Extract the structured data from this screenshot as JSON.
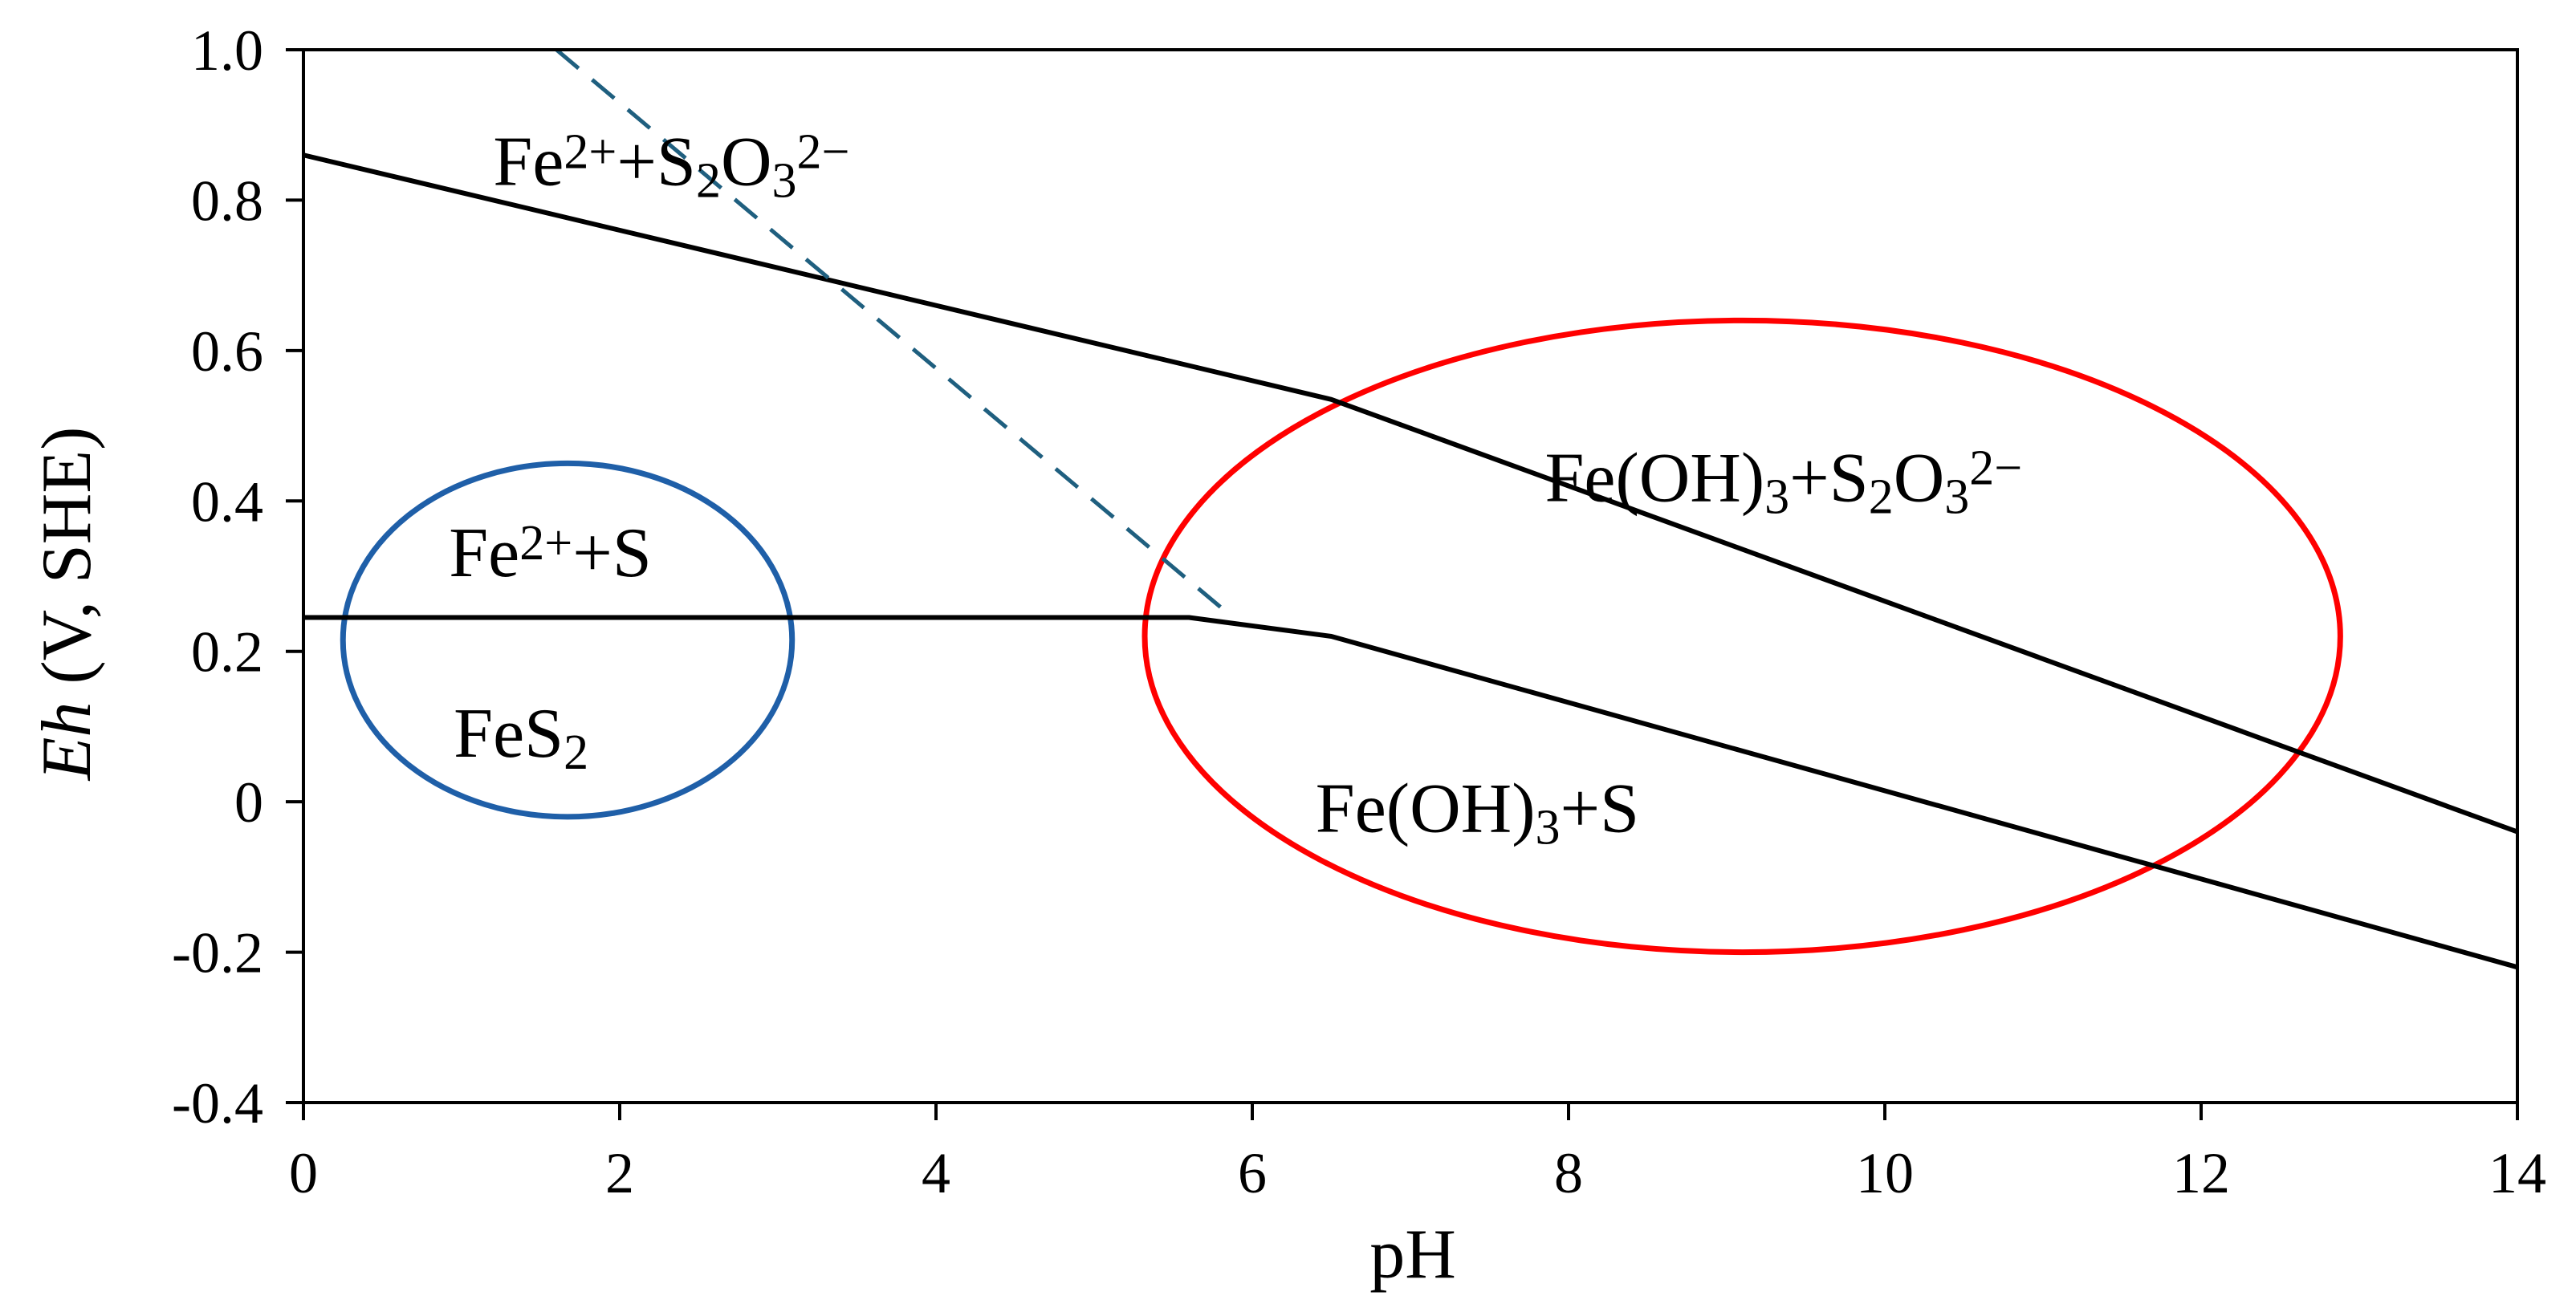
{
  "chart_data": {
    "type": "line",
    "xlabel": "pH",
    "ylabel": {
      "italic": "Eh",
      "rest": " (V, SHE)"
    },
    "xlim": [
      0,
      14
    ],
    "ylim": [
      -0.4,
      1.0
    ],
    "xticks": [
      "0",
      "2",
      "4",
      "6",
      "8",
      "10",
      "12",
      "14"
    ],
    "yticks": [
      "1.0",
      "0.8",
      "0.6",
      "0.4",
      "0.2",
      "0",
      "-0.2",
      "-0.4"
    ],
    "grid": false,
    "legend": "none",
    "series": [
      {
        "style": "solid",
        "color": "#000000",
        "points": [
          [
            0,
            0.86
          ],
          [
            6.5,
            0.535
          ],
          [
            14,
            -0.04
          ]
        ]
      },
      {
        "style": "solid",
        "color": "#000000",
        "points": [
          [
            0,
            0.245
          ],
          [
            5.6,
            0.245
          ],
          [
            6.5,
            0.22
          ],
          [
            14,
            -0.22
          ]
        ]
      },
      {
        "style": "dashed",
        "color": "#1f5f7f",
        "points": [
          [
            1.6,
            1.0
          ],
          [
            5.85,
            0.25
          ]
        ]
      }
    ],
    "ellipses": [
      {
        "color": "#1f5fa8",
        "cx": 1.67,
        "cy": 0.215,
        "rx": 1.42,
        "ry": 0.235
      },
      {
        "color": "#ff0000",
        "cx": 9.1,
        "cy": 0.22,
        "rx": 3.78,
        "ry": 0.42
      }
    ],
    "annotations": [
      {
        "id": "fe2-s2o3",
        "x": 1.2,
        "y": 0.82,
        "parts": [
          [
            "Fe",
            ""
          ],
          [
            "2+",
            "sup"
          ],
          [
            "+S",
            ""
          ],
          [
            "2",
            "sub"
          ],
          [
            "O",
            ""
          ],
          [
            "3",
            "sub"
          ],
          [
            "2−",
            "sup"
          ]
        ]
      },
      {
        "id": "fe2-s",
        "x": 0.92,
        "y": 0.3,
        "parts": [
          [
            "Fe",
            ""
          ],
          [
            "2+",
            "sup"
          ],
          [
            "+S",
            ""
          ]
        ]
      },
      {
        "id": "fes2",
        "x": 0.95,
        "y": 0.06,
        "parts": [
          [
            "FeS",
            ""
          ],
          [
            "2",
            "sub"
          ]
        ]
      },
      {
        "id": "feoh3-s2o3",
        "x": 7.85,
        "y": 0.4,
        "parts": [
          [
            "Fe(OH)",
            ""
          ],
          [
            "3",
            "sub"
          ],
          [
            "+S",
            ""
          ],
          [
            "2",
            "sub"
          ],
          [
            "O",
            ""
          ],
          [
            "3",
            "sub"
          ],
          [
            "2−",
            "sup"
          ]
        ]
      },
      {
        "id": "feoh3-s",
        "x": 6.4,
        "y": -0.04,
        "parts": [
          [
            "Fe(OH)",
            ""
          ],
          [
            "3",
            "sub"
          ],
          [
            "+S",
            ""
          ]
        ]
      }
    ]
  }
}
